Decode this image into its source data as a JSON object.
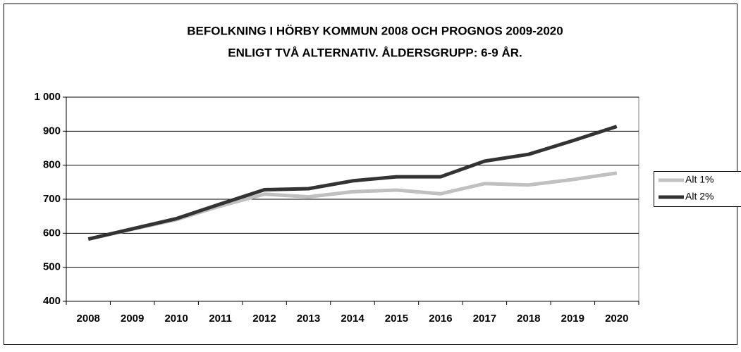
{
  "chart_data": {
    "type": "line",
    "title": "BEFOLKNING I HÖRBY KOMMUN 2008 OCH PROGNOS 2009-2020",
    "subtitle": "ENLIGT TVÅ ALTERNATIV. ÅLDERSGRUPP: 6-9 ÅR.",
    "categories": [
      "2008",
      "2009",
      "2010",
      "2011",
      "2012",
      "2013",
      "2014",
      "2015",
      "2016",
      "2017",
      "2018",
      "2019",
      "2020"
    ],
    "series": [
      {
        "name": "Alt 1%",
        "color": "#c0c0c0",
        "values": [
          583,
          612,
          640,
          680,
          715,
          707,
          722,
          727,
          716,
          746,
          742,
          758,
          777
        ]
      },
      {
        "name": "Alt 2%",
        "color": "#333333",
        "values": [
          583,
          613,
          643,
          686,
          728,
          731,
          754,
          766,
          766,
          812,
          832,
          872,
          914
        ]
      }
    ],
    "ylim": [
      400,
      1000
    ],
    "yticks": [
      400,
      500,
      600,
      700,
      800,
      900,
      {
        "value": 1000,
        "label": "1 000"
      }
    ],
    "grid": true,
    "legend": "right"
  }
}
